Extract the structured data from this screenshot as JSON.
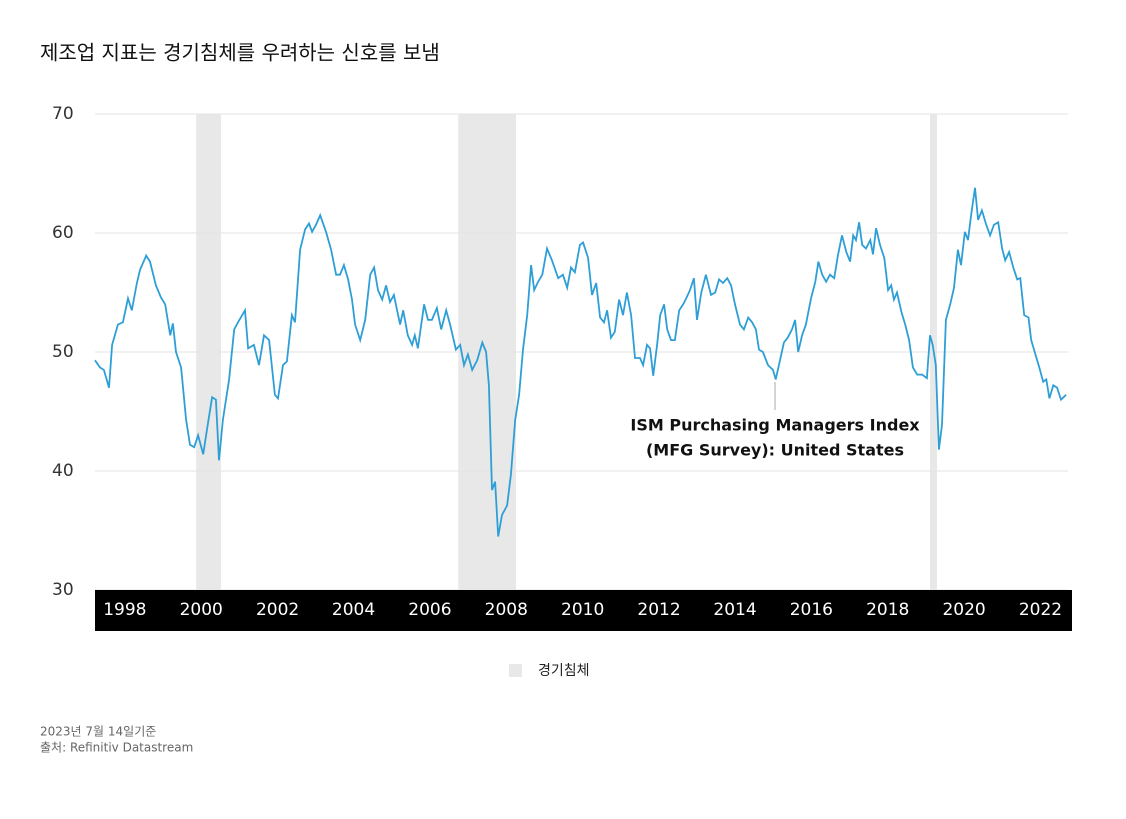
{
  "chart_data": {
    "type": "line",
    "title": "제조업 지표는 경기침체를 우려하는 신호를 보냄",
    "annotation": [
      "ISM Purchasing Managers Index",
      "(MFG Survey): United States"
    ],
    "notes": [
      "2023년 7월 14일기준",
      "출처: Refinitiv Datastream"
    ],
    "xlim": [
      1998.56,
      2023.66
    ],
    "ylim": [
      30,
      70
    ],
    "yticks": [
      30,
      40,
      50,
      60,
      70
    ],
    "grid": true,
    "xticks": [
      {
        "value": 1999.33,
        "label": "1998"
      },
      {
        "value": 2001.3,
        "label": "2000"
      },
      {
        "value": 2003.27,
        "label": "2002"
      },
      {
        "value": 2005.23,
        "label": "2004"
      },
      {
        "value": 2007.2,
        "label": "2006"
      },
      {
        "value": 2009.17,
        "label": "2008"
      },
      {
        "value": 2011.14,
        "label": "2010"
      },
      {
        "value": 2013.11,
        "label": "2012"
      },
      {
        "value": 2015.07,
        "label": "2014"
      },
      {
        "value": 2017.04,
        "label": "2016"
      },
      {
        "value": 2019.01,
        "label": "2018"
      },
      {
        "value": 2020.98,
        "label": "2020"
      },
      {
        "value": 2022.95,
        "label": "2022"
      }
    ],
    "shaded_ranges": {
      "name": "경기침체",
      "color": "#e8e8e8",
      "ranges": [
        [
          2001.17,
          2001.81
        ],
        [
          2007.93,
          2009.42
        ],
        [
          2020.1,
          2020.28
        ]
      ]
    },
    "series": [
      {
        "color": "#2e9fd6",
        "x": [
          1998.56,
          1998.69,
          1998.79,
          1998.92,
          1999.0,
          1999.15,
          1999.28,
          1999.41,
          1999.51,
          1999.64,
          1999.72,
          1999.88,
          1999.98,
          2000.13,
          2000.26,
          2000.37,
          2000.5,
          2000.57,
          2000.65,
          2000.78,
          2000.91,
          2001.01,
          2001.12,
          2001.22,
          2001.35,
          2001.45,
          2001.58,
          2001.68,
          2001.76,
          2001.86,
          2002.02,
          2002.15,
          2002.25,
          2002.43,
          2002.51,
          2002.66,
          2002.79,
          2002.92,
          2003.05,
          2003.2,
          2003.28,
          2003.41,
          2003.51,
          2003.64,
          2003.72,
          2003.85,
          2003.98,
          2004.08,
          2004.16,
          2004.26,
          2004.37,
          2004.52,
          2004.65,
          2004.78,
          2004.88,
          2004.98,
          2005.09,
          2005.19,
          2005.27,
          2005.4,
          2005.53,
          2005.66,
          2005.76,
          2005.86,
          2005.97,
          2006.07,
          2006.17,
          2006.27,
          2006.43,
          2006.51,
          2006.63,
          2006.74,
          2006.81,
          2006.89,
          2007.05,
          2007.15,
          2007.25,
          2007.38,
          2007.49,
          2007.62,
          2007.72,
          2007.87,
          2007.98,
          2008.08,
          2008.18,
          2008.29,
          2008.42,
          2008.55,
          2008.65,
          2008.72,
          2008.8,
          2008.88,
          2008.96,
          2009.06,
          2009.19,
          2009.29,
          2009.4,
          2009.5,
          2009.6,
          2009.71,
          2009.81,
          2009.89,
          2009.99,
          2010.1,
          2010.22,
          2010.35,
          2010.51,
          2010.63,
          2010.74,
          2010.84,
          2010.94,
          2011.07,
          2011.15,
          2011.28,
          2011.38,
          2011.49,
          2011.59,
          2011.69,
          2011.77,
          2011.87,
          2011.97,
          2012.08,
          2012.18,
          2012.28,
          2012.39,
          2012.49,
          2012.62,
          2012.7,
          2012.8,
          2012.88,
          2012.96,
          2013.06,
          2013.14,
          2013.24,
          2013.32,
          2013.42,
          2013.52,
          2013.63,
          2013.73,
          2013.81,
          2013.91,
          2014.01,
          2014.09,
          2014.2,
          2014.32,
          2014.45,
          2014.56,
          2014.66,
          2014.76,
          2014.87,
          2014.97,
          2015.07,
          2015.2,
          2015.3,
          2015.41,
          2015.51,
          2015.61,
          2015.69,
          2015.79,
          2015.92,
          2016.05,
          2016.12,
          2016.23,
          2016.33,
          2016.43,
          2016.54,
          2016.62,
          2016.7,
          2016.8,
          2016.9,
          2017.03,
          2017.14,
          2017.22,
          2017.32,
          2017.42,
          2017.52,
          2017.63,
          2017.73,
          2017.83,
          2017.94,
          2018.04,
          2018.12,
          2018.19,
          2018.27,
          2018.35,
          2018.45,
          2018.56,
          2018.63,
          2018.71,
          2018.81,
          2018.92,
          2019.02,
          2019.1,
          2019.17,
          2019.25,
          2019.36,
          2019.46,
          2019.56,
          2019.66,
          2019.77,
          2019.9,
          2020.02,
          2020.1,
          2020.17,
          2020.25,
          2020.33,
          2020.41,
          2020.51,
          2020.62,
          2020.72,
          2020.82,
          2020.9,
          2021.0,
          2021.08,
          2021.16,
          2021.26,
          2021.34,
          2021.44,
          2021.55,
          2021.65,
          2021.75,
          2021.86,
          2021.96,
          2022.04,
          2022.14,
          2022.25,
          2022.35,
          2022.43,
          2022.53,
          2022.64,
          2022.71,
          2022.82,
          2022.92,
          2023.02,
          2023.1,
          2023.18,
          2023.28,
          2023.38,
          2023.48,
          2023.61
        ],
        "values": [
          49.3,
          48.7,
          48.5,
          47.0,
          50.6,
          52.3,
          52.5,
          54.5,
          53.5,
          55.8,
          56.9,
          58.1,
          57.6,
          55.6,
          54.6,
          54.0,
          51.4,
          52.4,
          50.0,
          48.7,
          44.3,
          42.2,
          42.0,
          43.0,
          41.4,
          43.5,
          46.2,
          46.0,
          40.9,
          44.3,
          47.7,
          51.9,
          52.5,
          53.5,
          50.3,
          50.6,
          48.9,
          51.4,
          51.0,
          46.4,
          46.1,
          48.9,
          49.2,
          53.1,
          52.5,
          58.6,
          60.3,
          60.8,
          60.1,
          60.7,
          61.5,
          60.1,
          58.6,
          56.5,
          56.5,
          57.3,
          56.1,
          54.4,
          52.3,
          51.0,
          52.7,
          56.5,
          57.1,
          55.2,
          54.4,
          55.6,
          54.2,
          54.8,
          52.3,
          53.5,
          51.4,
          50.6,
          51.4,
          50.3,
          54.0,
          52.7,
          52.7,
          53.7,
          51.9,
          53.5,
          52.3,
          50.2,
          50.6,
          48.9,
          49.8,
          48.5,
          49.3,
          50.8,
          50.0,
          47.2,
          38.4,
          39.1,
          34.5,
          36.3,
          37.1,
          39.7,
          44.3,
          46.4,
          50.2,
          53.1,
          57.3,
          55.2,
          55.9,
          56.5,
          58.7,
          57.7,
          56.2,
          56.5,
          55.4,
          57.1,
          56.7,
          59.0,
          59.2,
          57.9,
          54.8,
          55.8,
          52.9,
          52.5,
          53.5,
          51.2,
          51.7,
          54.4,
          53.1,
          55.0,
          53.1,
          49.5,
          49.5,
          48.9,
          50.6,
          50.3,
          48.0,
          50.6,
          53.1,
          54.0,
          51.9,
          51.0,
          51.0,
          53.5,
          54.0,
          54.5,
          55.2,
          56.2,
          52.7,
          55.0,
          56.5,
          54.8,
          55.0,
          56.1,
          55.8,
          56.2,
          55.6,
          54.0,
          52.3,
          51.9,
          52.9,
          52.5,
          51.9,
          50.2,
          50.0,
          48.9,
          48.5,
          47.7,
          49.3,
          50.8,
          51.2,
          51.9,
          52.7,
          50.0,
          51.4,
          52.3,
          54.5,
          55.9,
          57.6,
          56.5,
          55.9,
          56.5,
          56.2,
          58.2,
          59.8,
          58.4,
          57.6,
          59.8,
          59.4,
          60.9,
          59.0,
          58.7,
          59.4,
          58.2,
          60.4,
          59.0,
          57.9,
          55.2,
          55.6,
          54.4,
          55.0,
          53.4,
          52.3,
          51.0,
          48.7,
          48.1,
          48.1,
          47.8,
          51.4,
          50.6,
          48.9,
          41.8,
          43.9,
          52.7,
          54.0,
          55.4,
          58.6,
          57.3,
          60.1,
          59.4,
          61.5,
          63.8,
          61.1,
          61.9,
          60.7,
          59.8,
          60.7,
          60.9,
          58.7,
          57.7,
          58.4,
          57.1,
          56.1,
          56.2,
          53.1,
          52.9,
          51.0,
          49.8,
          48.7,
          47.5,
          47.7,
          46.1,
          47.2,
          47.0,
          46.0,
          46.4
        ]
      }
    ]
  }
}
